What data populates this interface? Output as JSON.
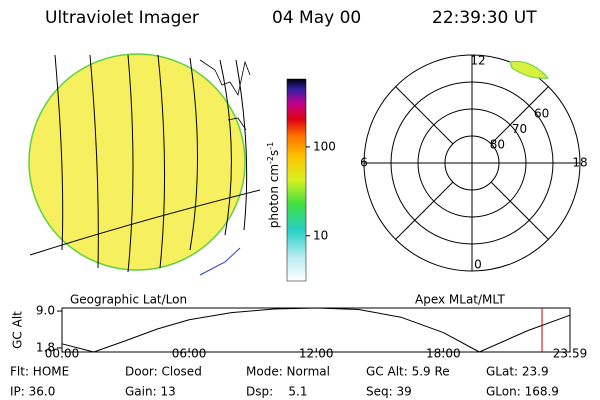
{
  "header": {
    "title": "Ultraviolet Imager",
    "date": "04 May 00",
    "time": "22:39:30 UT"
  },
  "colorbar": {
    "unit": {
      "base": "photon cm",
      "exp1": "-2",
      "mid": "s",
      "exp2": "-1"
    },
    "log": true,
    "clim": [
      3.1,
      580
    ],
    "ticks": [
      100,
      10
    ]
  },
  "polar": {
    "rlim": [
      90,
      50
    ],
    "mlat_labels": [
      80,
      70,
      60
    ],
    "mlt_labels": [
      12,
      18,
      6,
      0
    ]
  },
  "map_labels": {
    "left": "Geographic Lat/Lon",
    "right": "Apex MLat/MLT"
  },
  "altitude": {
    "label": "GC Alt",
    "x": [
      0,
      1.5,
      3,
      4.5,
      6,
      8,
      10,
      12,
      14,
      16,
      18,
      19.7,
      22,
      23.98
    ],
    "values": [
      2.6,
      1.0,
      3.2,
      5.5,
      7.3,
      8.7,
      9.4,
      9.6,
      9.3,
      7.8,
      4.8,
      1.0,
      5.2,
      8.2
    ],
    "xlim": [
      0,
      23.98
    ],
    "xticks": [
      {
        "value": 0,
        "label": "00:00"
      },
      {
        "value": 6,
        "label": "06:00"
      },
      {
        "value": 12,
        "label": "12:00"
      },
      {
        "value": 18,
        "label": "18:00"
      },
      {
        "value": 23.98,
        "label": "23:59"
      }
    ],
    "ylim": [
      1.0,
      9.6
    ],
    "yticks": [
      {
        "value": 9.0,
        "label": "9.0"
      },
      {
        "value": 1.8,
        "label": "1.8"
      }
    ],
    "marker": 22.66,
    "marker_color": "#c00000"
  },
  "status": [
    [
      "Flt: HOME",
      "Door: Closed",
      "Mode: Normal",
      "GC Alt: 5.9 Re",
      "GLat: 23.9"
    ],
    [
      "IP: 36.0",
      "Gain: 13",
      "Dsp:    5.1",
      "Seq: 39",
      "GLon: 168.9"
    ]
  ]
}
